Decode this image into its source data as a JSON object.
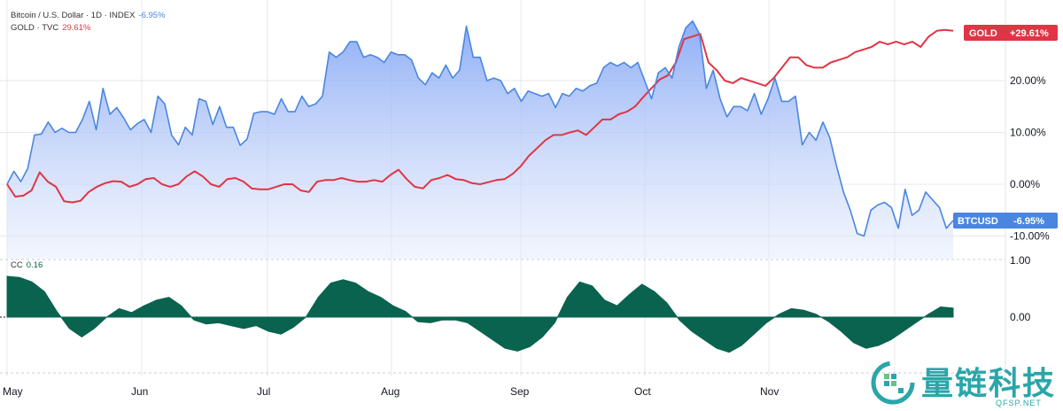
{
  "legend": {
    "btc_label": "Bitcoin / U.S. Dollar · 1D · INDEX",
    "btc_change": "-6.95%",
    "gold_label": "GOLD · TVC",
    "gold_change": "29.61%",
    "cc_label": "CC",
    "cc_value": "0.16"
  },
  "tags": {
    "gold_name": "GOLD",
    "gold_value": "+29.61%",
    "btc_name": "BTCUSD",
    "btc_value": "-6.95%"
  },
  "watermark": {
    "cn": "量链科技",
    "en": "QFSP.NET"
  },
  "colors": {
    "btc": "#4a86e0",
    "gold": "#e03545",
    "cc": "#09634f",
    "grid": "#e6e8ec"
  },
  "chart_data": [
    {
      "type": "area",
      "ylim": [
        -10,
        32
      ],
      "y_ticks": [
        20,
        10,
        0,
        -10
      ],
      "y_tick_labels": [
        "20.00%",
        "10.00%",
        "0.00%",
        "-10.00%"
      ],
      "x_ticks": [
        "May",
        "Jun",
        "Jul",
        "Aug",
        "Sep",
        "Oct",
        "Nov"
      ],
      "series": [
        {
          "name": "BTCUSD",
          "values": [
            0,
            2.5,
            0.5,
            3,
            9.5,
            9.7,
            12,
            10,
            10.8,
            10,
            10,
            12.5,
            16,
            10.5,
            18.5,
            13.5,
            14.8,
            12.8,
            10.5,
            11.7,
            12.5,
            10,
            17,
            15.5,
            9.5,
            7.6,
            11,
            9.5,
            16.5,
            16,
            11.5,
            15,
            11,
            11,
            7.5,
            8.7,
            13.7,
            14,
            14,
            13.5,
            16.5,
            14,
            14,
            17,
            15,
            15.5,
            17,
            25.5,
            24.5,
            25.5,
            27.5,
            27.5,
            24.5,
            25,
            24.5,
            23.5,
            25.5,
            25,
            25,
            24,
            20.5,
            19.2,
            21.5,
            20.5,
            23,
            20.5,
            22,
            30.5,
            24.5,
            24.5,
            20,
            20.5,
            20,
            17.5,
            18.5,
            16,
            18,
            17.5,
            17,
            17.5,
            14.8,
            17.5,
            17,
            18.5,
            18,
            19,
            19.5,
            22.5,
            23.5,
            22.8,
            23.5,
            22.5,
            23.5,
            20,
            16.5,
            21.5,
            22.5,
            20.5,
            26.5,
            30.2,
            31.5,
            29,
            18.5,
            22,
            16.5,
            13,
            15,
            15,
            14.2,
            17.5,
            13.5,
            16.5,
            20.5,
            16,
            16,
            17,
            7.6,
            10,
            8.5,
            12,
            9,
            3.5,
            -1.5,
            -5,
            -9.5,
            -10,
            -5,
            -4,
            -3.5,
            -4.5,
            -8.5,
            -1,
            -6,
            -5,
            -1.5,
            -3,
            -4.5,
            -8.5,
            -7
          ],
          "color": "#4a86e0"
        },
        {
          "name": "GOLD",
          "values": [
            0,
            -2.4,
            -2.2,
            -1.2,
            2.3,
            0.5,
            -0.5,
            -3.3,
            -3.5,
            -3.2,
            -1.5,
            -0.5,
            0.2,
            0.6,
            0.5,
            -0.5,
            0,
            1,
            1.2,
            0,
            -0.5,
            0,
            1.5,
            2.5,
            1.5,
            0,
            -0.5,
            1,
            1.2,
            0.5,
            -0.8,
            -1,
            -1,
            -0.5,
            0,
            0,
            -1.2,
            -1.5,
            0.5,
            0.8,
            0.8,
            1.2,
            0.8,
            0.5,
            0.5,
            0.8,
            0.5,
            1.8,
            2.8,
            1,
            -0.5,
            -0.8,
            0.8,
            1.2,
            1.8,
            1,
            0.8,
            0.2,
            0,
            0.4,
            0.8,
            1,
            2,
            3.5,
            5.5,
            7,
            8.5,
            9.5,
            9.5,
            10,
            10.4,
            9.5,
            11,
            12.5,
            12.5,
            13.5,
            14,
            15,
            16.8,
            18.5,
            20.2,
            21,
            23.5,
            28,
            28.5,
            29,
            23.5,
            22,
            20,
            19.5,
            20.5,
            20,
            19.5,
            19,
            20.5,
            22.5,
            24.5,
            24.5,
            23,
            22.5,
            22.5,
            23.5,
            24,
            24.5,
            25.5,
            26,
            26.5,
            27.5,
            27,
            27.5,
            27,
            27.5,
            26.5,
            28.5,
            29.6,
            29.8,
            29.6
          ],
          "color": "#e03545"
        }
      ]
    },
    {
      "type": "area",
      "title": "CC",
      "ylim": [
        -1,
        1
      ],
      "y_ticks": [
        1,
        0
      ],
      "y_tick_labels": [
        "1.00",
        "0.00"
      ],
      "series": [
        {
          "name": "CC",
          "values": [
            0.72,
            0.7,
            0.62,
            0.45,
            0.1,
            -0.2,
            -0.35,
            -0.2,
            0.0,
            0.15,
            0.08,
            0.2,
            0.3,
            0.35,
            0.2,
            -0.05,
            -0.12,
            -0.1,
            -0.15,
            -0.2,
            -0.15,
            -0.25,
            -0.3,
            -0.18,
            0.0,
            0.35,
            0.6,
            0.66,
            0.6,
            0.45,
            0.35,
            0.2,
            0.1,
            -0.08,
            -0.1,
            -0.05,
            -0.05,
            -0.1,
            -0.25,
            -0.4,
            -0.55,
            -0.6,
            -0.52,
            -0.35,
            -0.1,
            0.35,
            0.62,
            0.55,
            0.3,
            0.2,
            0.4,
            0.58,
            0.45,
            0.25,
            -0.05,
            -0.25,
            -0.4,
            -0.55,
            -0.62,
            -0.5,
            -0.3,
            -0.1,
            0.05,
            0.15,
            0.12,
            0.05,
            -0.08,
            -0.25,
            -0.45,
            -0.55,
            -0.5,
            -0.4,
            -0.25,
            -0.1,
            0.05,
            0.18,
            0.16
          ]
        }
      ],
      "color": "#09634f"
    }
  ]
}
